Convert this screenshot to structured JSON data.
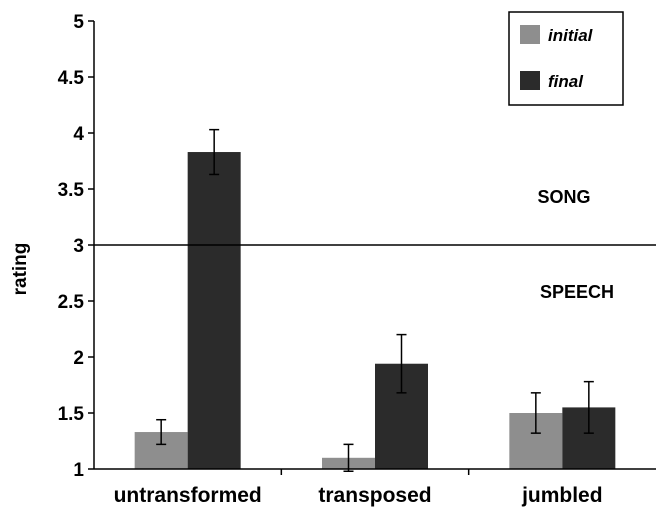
{
  "chart_data": {
    "type": "bar",
    "ylabel": "rating",
    "ylim": [
      1,
      5
    ],
    "yticks": [
      "1",
      "1.5",
      "2",
      "2.5",
      "3",
      "3.5",
      "4",
      "4.5",
      "5"
    ],
    "categories": [
      "untransformed",
      "transposed",
      "jumbled"
    ],
    "series": [
      {
        "name": "initial",
        "color": "#8e8e8e",
        "values": [
          1.33,
          1.1,
          1.5
        ],
        "errors": [
          0.11,
          0.12,
          0.18
        ]
      },
      {
        "name": "final",
        "color": "#2b2b2b",
        "values": [
          3.83,
          1.94,
          1.55
        ],
        "errors": [
          0.2,
          0.26,
          0.23
        ]
      }
    ],
    "reference_line": 3,
    "annotations": {
      "above": "SONG",
      "below": "SPEECH"
    },
    "legend_position": "top-right",
    "grid": false
  }
}
